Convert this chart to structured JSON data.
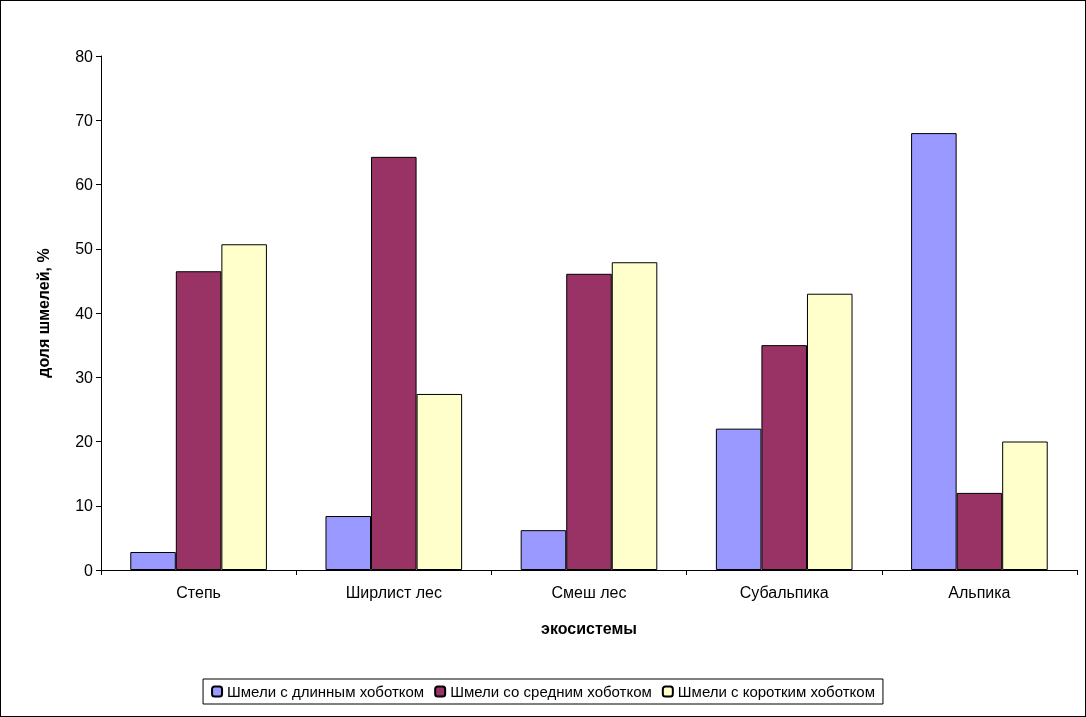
{
  "chart_data": {
    "type": "bar",
    "xlabel": "экосистемы",
    "ylabel": "доля шмелей, %",
    "categories": [
      "Степь",
      "Ширлист лес",
      "Смеш лес",
      "Субальпика",
      "Альпика"
    ],
    "series": [
      {
        "name": "Шмели с длинным хоботком",
        "color": "#9999ff",
        "values": [
          2.8,
          8.4,
          6.2,
          22,
          68
        ]
      },
      {
        "name": "Шмели со средним хоботком",
        "color": "#993366",
        "values": [
          46.5,
          64.3,
          46.1,
          35,
          12
        ]
      },
      {
        "name": "Шмели с коротким хоботком",
        "color": "#ffffcc",
        "values": [
          50.7,
          27.4,
          47.9,
          43,
          20
        ]
      }
    ],
    "ylim": [
      0,
      80
    ],
    "yticks": [
      0,
      10,
      20,
      30,
      40,
      50,
      60,
      70,
      80
    ],
    "grid": false,
    "legend": "bottom"
  }
}
